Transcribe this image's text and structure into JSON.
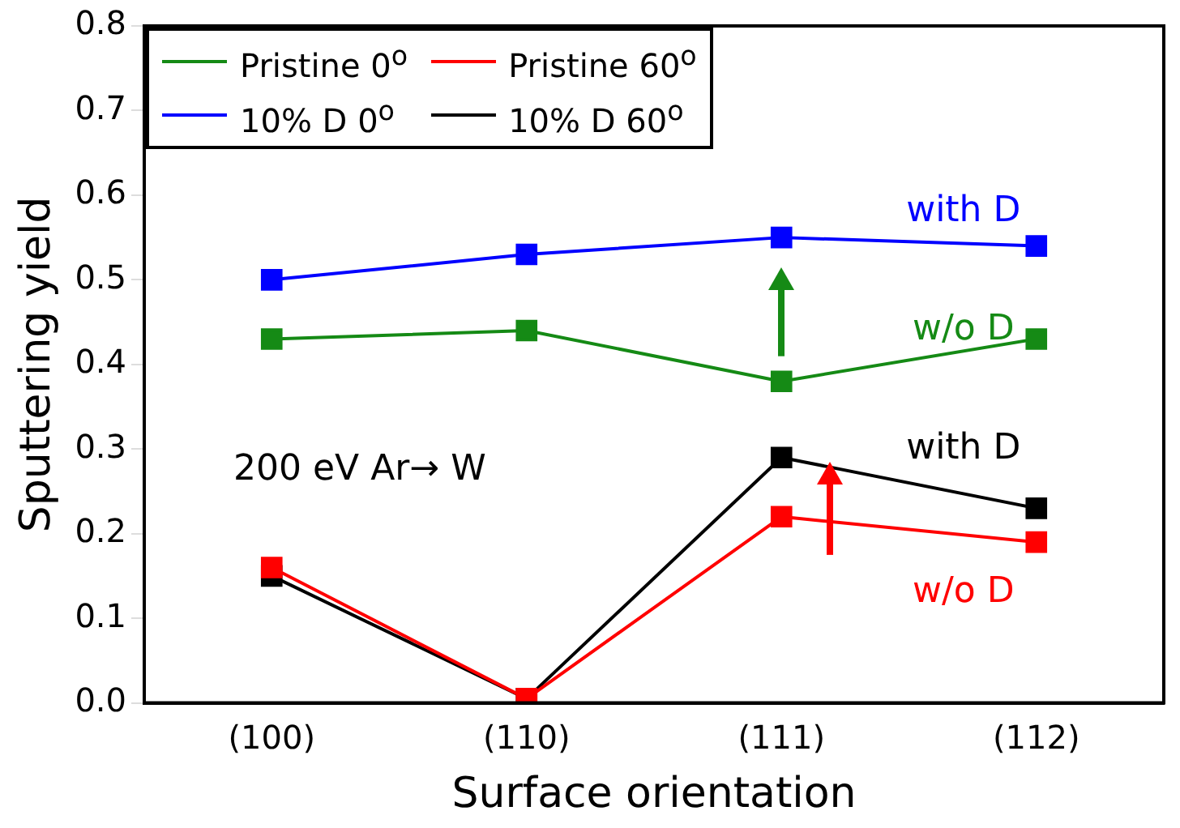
{
  "chart_data": {
    "type": "line",
    "xlabel": "Surface orientation",
    "ylabel": "Sputtering yield",
    "categories": [
      "(100)",
      "(110)",
      "(111)",
      "(112)"
    ],
    "series": [
      {
        "name": "Pristine 0$^{o}$",
        "color": "#158a15",
        "values": [
          0.43,
          0.44,
          0.38,
          0.43
        ]
      },
      {
        "name": "Pristine 60$^{o}$",
        "color": "#ff0000",
        "values": [
          0.16,
          0.005,
          0.22,
          0.19
        ]
      },
      {
        "name": "10% D 0$^{o}$",
        "color": "#0000ff",
        "values": [
          0.5,
          0.53,
          0.55,
          0.54
        ]
      },
      {
        "name": "10% D 60$^{o}$",
        "color": "#000000",
        "values": [
          0.15,
          0.005,
          0.29,
          0.23
        ]
      }
    ],
    "ylim": [
      0,
      0.8
    ],
    "yticks": [
      {
        "value": 0,
        "label": "0.0"
      },
      0.1,
      0.2,
      0.3,
      0.4,
      0.5,
      0.6,
      0.7,
      0.8
    ],
    "marker": "square",
    "legend": "top left",
    "grid": false,
    "annotations": [
      "200 eV Ar→ W",
      "with D",
      "w/o D",
      "with D",
      "w/o D"
    ]
  }
}
